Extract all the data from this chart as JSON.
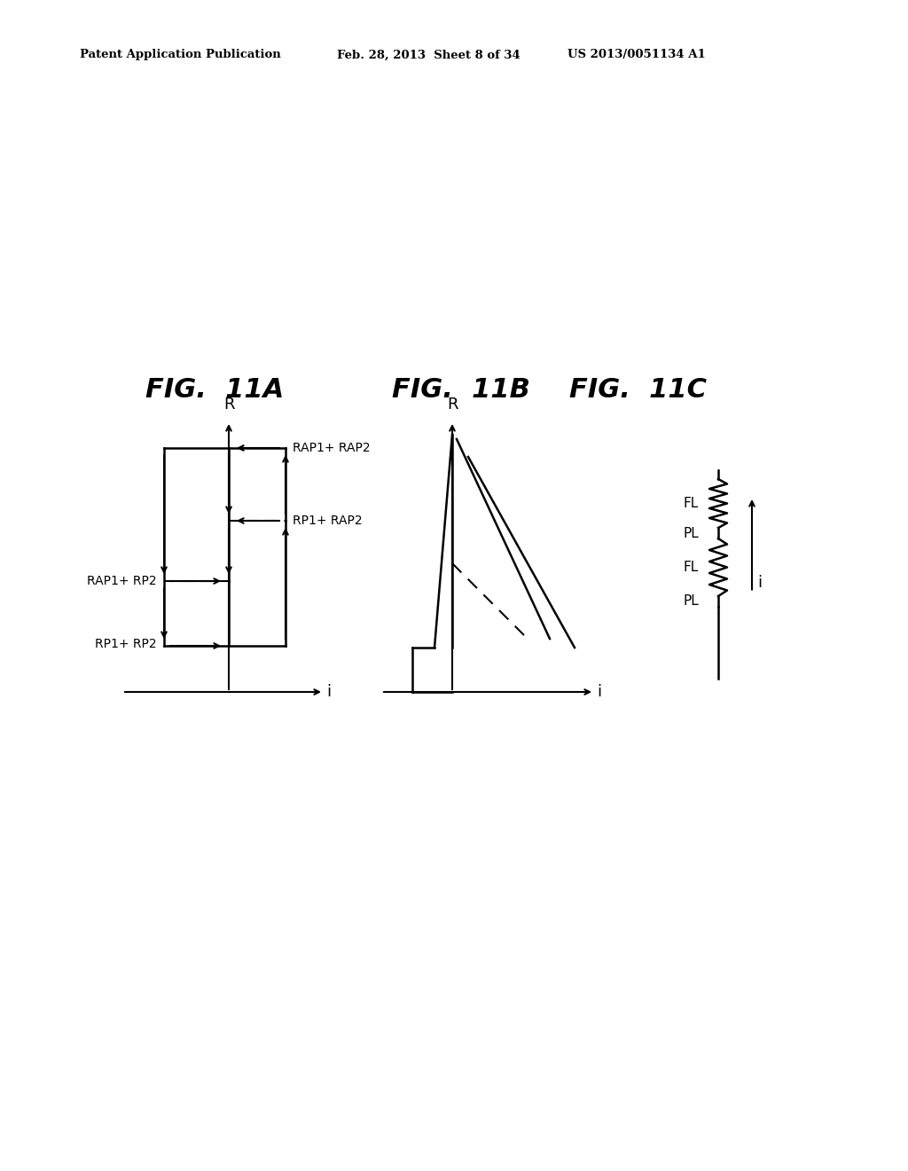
{
  "bg_color": "#ffffff",
  "header_left": "Patent Application Publication",
  "header_mid": "Feb. 28, 2013  Sheet 8 of 34",
  "header_right": "US 2013/0051134 A1",
  "fig11a_title": "FIG.  11A",
  "fig11b_title": "FIG.  11B",
  "fig11c_title": "FIG.  11C",
  "text_color": "#000000",
  "line_color": "#000000"
}
